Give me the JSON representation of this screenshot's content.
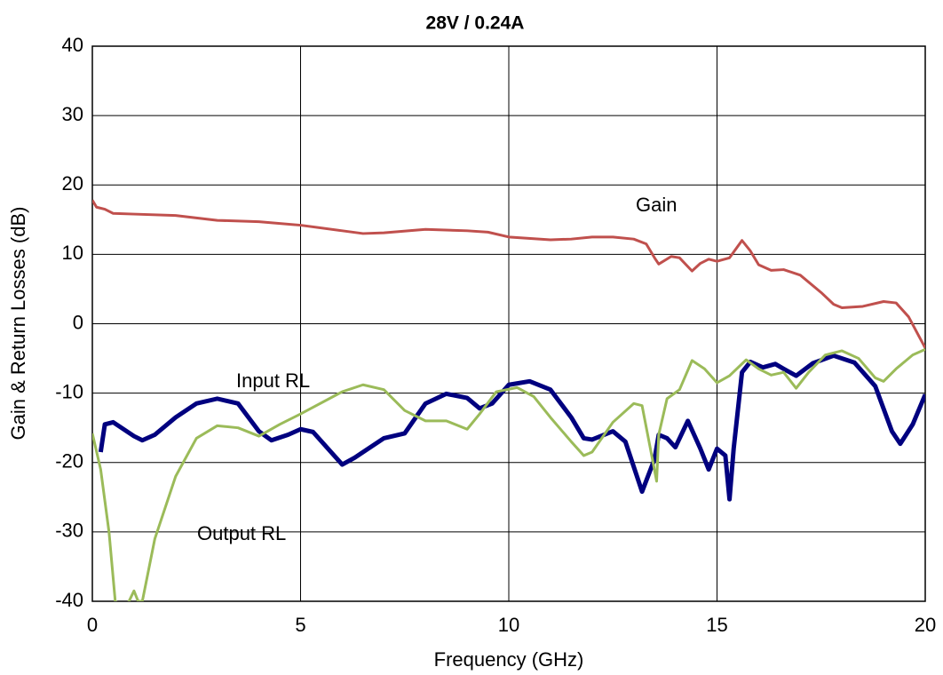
{
  "chart_data": {
    "type": "line",
    "title": "28V / 0.24A",
    "xlabel": "Frequency (GHz)",
    "ylabel": "Gain & Return Losses (dB)",
    "xlim": [
      0,
      20
    ],
    "xticks": [
      0,
      5,
      10,
      15,
      20
    ],
    "ylim": [
      -40,
      40
    ],
    "yticks": [
      -40,
      -30,
      -20,
      -10,
      0,
      10,
      20,
      30,
      40
    ],
    "grid": true,
    "series": [
      {
        "name": "Gain",
        "color": "#c0504d",
        "width": 3,
        "x": [
          0,
          0.1,
          0.3,
          0.5,
          1,
          2,
          3,
          4,
          5,
          6,
          6.5,
          7,
          8,
          9,
          9.5,
          10,
          11,
          11.5,
          12,
          12.5,
          13,
          13.3,
          13.5,
          13.6,
          13.9,
          14.1,
          14.4,
          14.6,
          14.8,
          15,
          15.3,
          15.6,
          15.8,
          16,
          16.3,
          16.6,
          17,
          17.5,
          17.8,
          18,
          18.5,
          19,
          19.3,
          19.6,
          20
        ],
        "values": [
          17.8,
          16.8,
          16.5,
          15.9,
          15.8,
          15.6,
          14.9,
          14.7,
          14.2,
          13.4,
          13,
          13.1,
          13.6,
          13.4,
          13.2,
          12.5,
          12.1,
          12.2,
          12.5,
          12.5,
          12.2,
          11.5,
          9.5,
          8.6,
          9.7,
          9.5,
          7.6,
          8.7,
          9.3,
          9,
          9.5,
          12,
          10.5,
          8.5,
          7.7,
          7.8,
          7,
          4.5,
          2.8,
          2.3,
          2.5,
          3.2,
          3,
          1,
          -3.5
        ]
      },
      {
        "name": "Input RL",
        "color": "#00007f",
        "width": 5,
        "x": [
          0.2,
          0.3,
          0.5,
          1,
          1.2,
          1.5,
          2,
          2.5,
          3,
          3.5,
          4,
          4.3,
          4.7,
          5,
          5.3,
          6,
          6.3,
          7,
          7.5,
          8,
          8.5,
          9,
          9.3,
          9.6,
          10,
          10.5,
          11,
          11.5,
          11.8,
          12,
          12.5,
          12.8,
          13.2,
          13.5,
          13.6,
          13.8,
          14,
          14.3,
          14.6,
          14.8,
          15,
          15.2,
          15.3,
          15.4,
          15.6,
          15.8,
          16.1,
          16.4,
          16.6,
          16.9,
          17.3,
          17.8,
          18.3,
          18.8,
          19.2,
          19.4,
          19.7,
          20
        ],
        "values": [
          -18.5,
          -14.5,
          -14.2,
          -16.2,
          -16.8,
          -16,
          -13.5,
          -11.5,
          -10.8,
          -11.5,
          -15.5,
          -16.8,
          -16,
          -15.2,
          -15.6,
          -20.3,
          -19.3,
          -16.5,
          -15.8,
          -11.5,
          -10.1,
          -10.7,
          -12.2,
          -11.5,
          -8.8,
          -8.3,
          -9.5,
          -13.5,
          -16.5,
          -16.7,
          -15.5,
          -17,
          -24.2,
          -19.5,
          -16,
          -16.5,
          -17.8,
          -14,
          -18,
          -21,
          -18,
          -19,
          -25.3,
          -18,
          -7,
          -5.5,
          -6.3,
          -5.8,
          -6.5,
          -7.5,
          -5.7,
          -4.6,
          -5.6,
          -9,
          -15.5,
          -17.3,
          -14.5,
          -10.2
        ]
      },
      {
        "name": "Output RL",
        "color": "#9bbb59",
        "width": 3,
        "x": [
          0,
          0.2,
          0.4,
          0.55,
          0.8,
          1,
          1.1,
          1.2,
          1.5,
          2,
          2.5,
          3,
          3.5,
          4,
          4.5,
          5,
          6,
          6.5,
          7,
          7.5,
          8,
          8.5,
          9,
          9.3,
          9.7,
          10.2,
          10.6,
          11,
          11.5,
          11.8,
          12,
          12.5,
          13,
          13.2,
          13.4,
          13.55,
          13.6,
          13.8,
          14.1,
          14.4,
          14.7,
          15,
          15.3,
          15.7,
          16,
          16.3,
          16.6,
          16.9,
          17.2,
          17.6,
          18,
          18.4,
          18.8,
          19,
          19.3,
          19.7,
          20
        ],
        "values": [
          -15.8,
          -21,
          -30,
          -40,
          -41,
          -38.5,
          -40,
          -40,
          -31,
          -22,
          -16.5,
          -14.7,
          -15,
          -16.2,
          -14.5,
          -13,
          -9.8,
          -8.8,
          -9.5,
          -12.5,
          -14,
          -14,
          -15.2,
          -13,
          -9.8,
          -9.2,
          -10.5,
          -13.5,
          -17,
          -19,
          -18.5,
          -14.2,
          -11.5,
          -11.8,
          -18,
          -22.7,
          -16,
          -10.8,
          -9.5,
          -5.3,
          -6.5,
          -8.5,
          -7.5,
          -5.2,
          -6.5,
          -7.4,
          -7,
          -9.3,
          -7,
          -4.5,
          -3.9,
          -5,
          -7.8,
          -8.3,
          -6.5,
          -4.5,
          -3.7
        ]
      }
    ]
  }
}
